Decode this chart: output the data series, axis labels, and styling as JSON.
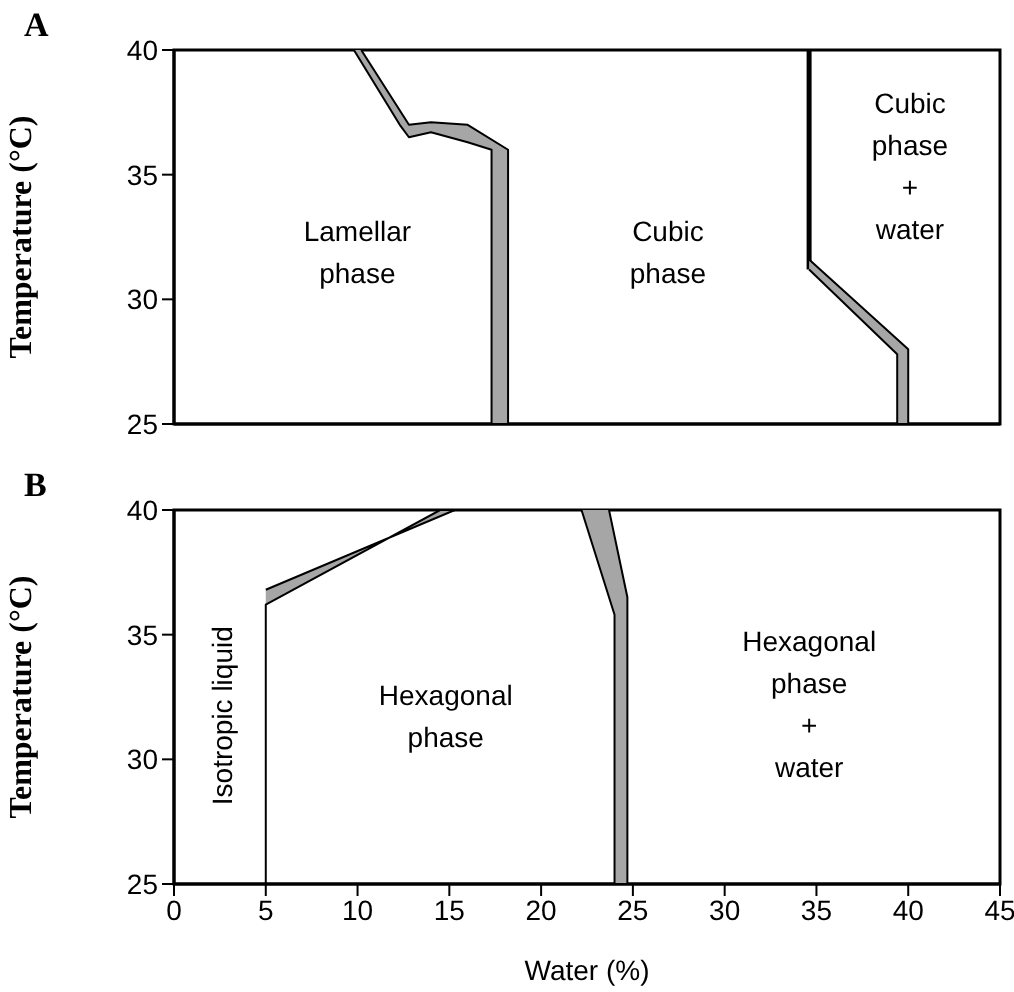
{
  "chart_data": [
    {
      "type": "area",
      "title": "A",
      "ylabel": "Temperature (°C)",
      "xlim": [
        0,
        45
      ],
      "ylim": [
        25,
        40
      ],
      "xticks": [
        0,
        5,
        10,
        15,
        20,
        25,
        30,
        35,
        40,
        45
      ],
      "yticks": [
        25,
        30,
        35,
        40
      ],
      "tick_labels": "y",
      "grid": false,
      "legend": false,
      "marker": "none",
      "series": [
        {
          "type": "area",
          "color": "#a6a6a6",
          "x": [
            9.8,
            12.3,
            12.8,
            14,
            16,
            17.3,
            17.3,
            18.2,
            18.2,
            16,
            14,
            12.8,
            10.2
          ],
          "values": [
            40,
            37,
            36.5,
            36.7,
            36.3,
            36,
            25,
            25,
            36,
            37,
            37.1,
            37,
            40
          ]
        },
        {
          "type": "line",
          "color": "#000000",
          "x": [
            34.6,
            34.6
          ],
          "values": [
            40,
            31.2
          ]
        },
        {
          "type": "area",
          "color": "#a6a6a6",
          "x": [
            34.6,
            39.4,
            39.4,
            40,
            40,
            34.6
          ],
          "values": [
            31.2,
            27.8,
            25,
            25,
            28,
            31.6
          ]
        }
      ],
      "annotations": [
        "Lamellar\nphase",
        "Cubic\nphase",
        "Cubic\nphase\n+\nwater"
      ]
    },
    {
      "type": "area",
      "title": "B",
      "xlabel": "Water (%)",
      "ylabel": "Temperature (°C)",
      "xlim": [
        0,
        45
      ],
      "ylim": [
        25,
        40
      ],
      "xticks": [
        0,
        5,
        10,
        15,
        20,
        25,
        30,
        35,
        40,
        45
      ],
      "yticks": [
        25,
        30,
        35,
        40
      ],
      "grid": false,
      "legend": false,
      "marker": "none",
      "series": [
        {
          "type": "area",
          "color": "#a6a6a6",
          "x": [
            5,
            5,
            14.5,
            15.3,
            5
          ],
          "values": [
            25,
            36.2,
            40,
            40,
            36.8
          ]
        },
        {
          "type": "area",
          "color": "#a6a6a6",
          "x": [
            22.2,
            24,
            24,
            24.7,
            24.7,
            23.7
          ],
          "values": [
            40,
            35.8,
            25,
            25,
            36.5,
            40
          ]
        }
      ],
      "annotations": [
        "Isotropic liquid",
        "Hexagonal\nphase",
        "Hexagonal\nphase\n+\nwater"
      ]
    }
  ]
}
